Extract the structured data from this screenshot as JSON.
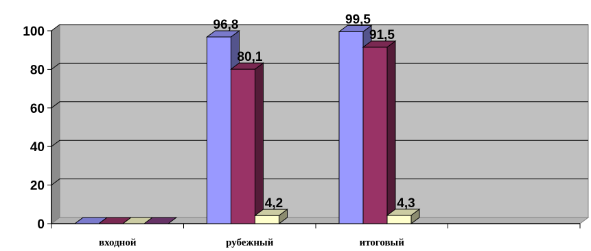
{
  "chart_data": {
    "type": "bar",
    "title": "",
    "xlabel": "",
    "ylabel": "",
    "ylim": [
      0,
      100
    ],
    "yticks": [
      "0",
      "20",
      "40",
      "60",
      "80",
      "100"
    ],
    "categories": [
      "входной",
      "рубежный",
      "итоговый",
      ""
    ],
    "series": [
      {
        "color": "#9999ff",
        "values": [
          0,
          96.8,
          99.5,
          0
        ],
        "labels": [
          "",
          "96,8",
          "99,5",
          ""
        ]
      },
      {
        "color": "#993366",
        "values": [
          0,
          80.1,
          91.5,
          0
        ],
        "labels": [
          "",
          "80,1",
          "91,5",
          ""
        ]
      },
      {
        "color": "#ffffcc",
        "values": [
          0,
          4.2,
          4.3,
          0
        ],
        "labels": [
          "",
          "4,2",
          "4,3",
          ""
        ]
      }
    ],
    "grid": true,
    "legend": "none",
    "three_d": true,
    "plot_background": "#c0c0c0"
  }
}
